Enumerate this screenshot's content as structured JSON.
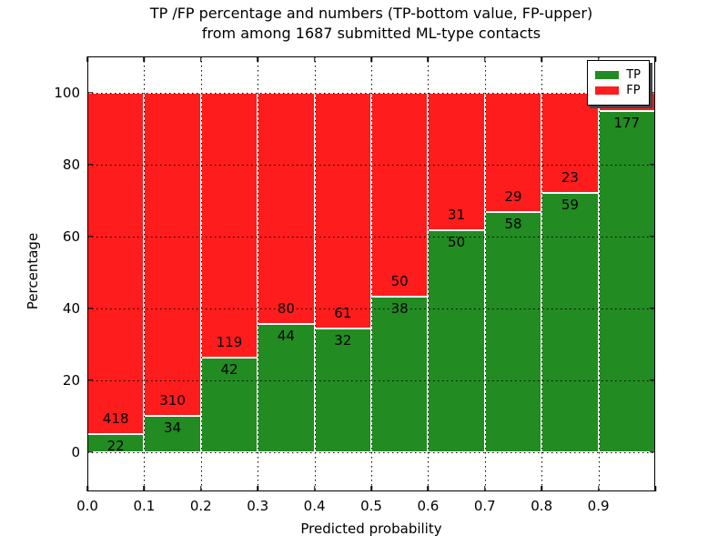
{
  "figure": {
    "title_line1": "TP /FP percentage and numbers (TP-bottom value, FP-upper)",
    "title_line2": "from among 1687 submitted ML-type contacts"
  },
  "axes": {
    "xlabel": "Predicted probability",
    "ylabel": "Percentage"
  },
  "legend": {
    "items": [
      {
        "label": "TP",
        "color": "#228b22"
      },
      {
        "label": "FP",
        "color": "#ff1c1c"
      }
    ]
  },
  "chart_data": {
    "type": "bar",
    "stacked": true,
    "normalized": "percent (each bar sums to 100)",
    "title": "TP /FP percentage and numbers (TP-bottom value, FP-upper) from among 1687 submitted ML-type contacts",
    "xlabel": "Predicted probability",
    "ylabel": "Percentage",
    "xlim": [
      0.0,
      1.0
    ],
    "ylim": [
      -11,
      110
    ],
    "grid": true,
    "legend_position": "upper right",
    "bin_width": 0.1,
    "bin_starts": [
      0.0,
      0.1,
      0.2,
      0.3,
      0.4,
      0.5,
      0.6,
      0.7,
      0.8,
      0.9
    ],
    "x_tick_labels": [
      "0.0",
      "0.1",
      "0.2",
      "0.3",
      "0.4",
      "0.5",
      "0.6",
      "0.7",
      "0.8",
      "0.9"
    ],
    "y_tick_values": [
      0,
      20,
      40,
      60,
      80,
      100
    ],
    "y_tick_labels": [
      "0",
      "20",
      "40",
      "60",
      "80",
      "100"
    ],
    "series": [
      {
        "name": "TP",
        "color": "#228b22",
        "counts": [
          22,
          34,
          42,
          44,
          32,
          38,
          50,
          58,
          59,
          177
        ],
        "percent": [
          5.0,
          9.9,
          26.1,
          35.5,
          34.4,
          43.2,
          61.7,
          66.7,
          72.0,
          94.7
        ]
      },
      {
        "name": "FP",
        "color": "#ff1c1c",
        "counts": [
          418,
          310,
          119,
          80,
          61,
          50,
          31,
          29,
          23,
          null
        ],
        "percent": [
          95.0,
          90.1,
          73.9,
          64.5,
          65.6,
          56.8,
          38.3,
          33.3,
          28.0,
          5.3
        ]
      }
    ],
    "tp_labels": [
      "22",
      "34",
      "42",
      "44",
      "32",
      "38",
      "50",
      "58",
      "59",
      "177"
    ],
    "fp_labels": [
      "418",
      "310",
      "119",
      "80",
      "61",
      "50",
      "31",
      "29",
      "23",
      ""
    ]
  }
}
